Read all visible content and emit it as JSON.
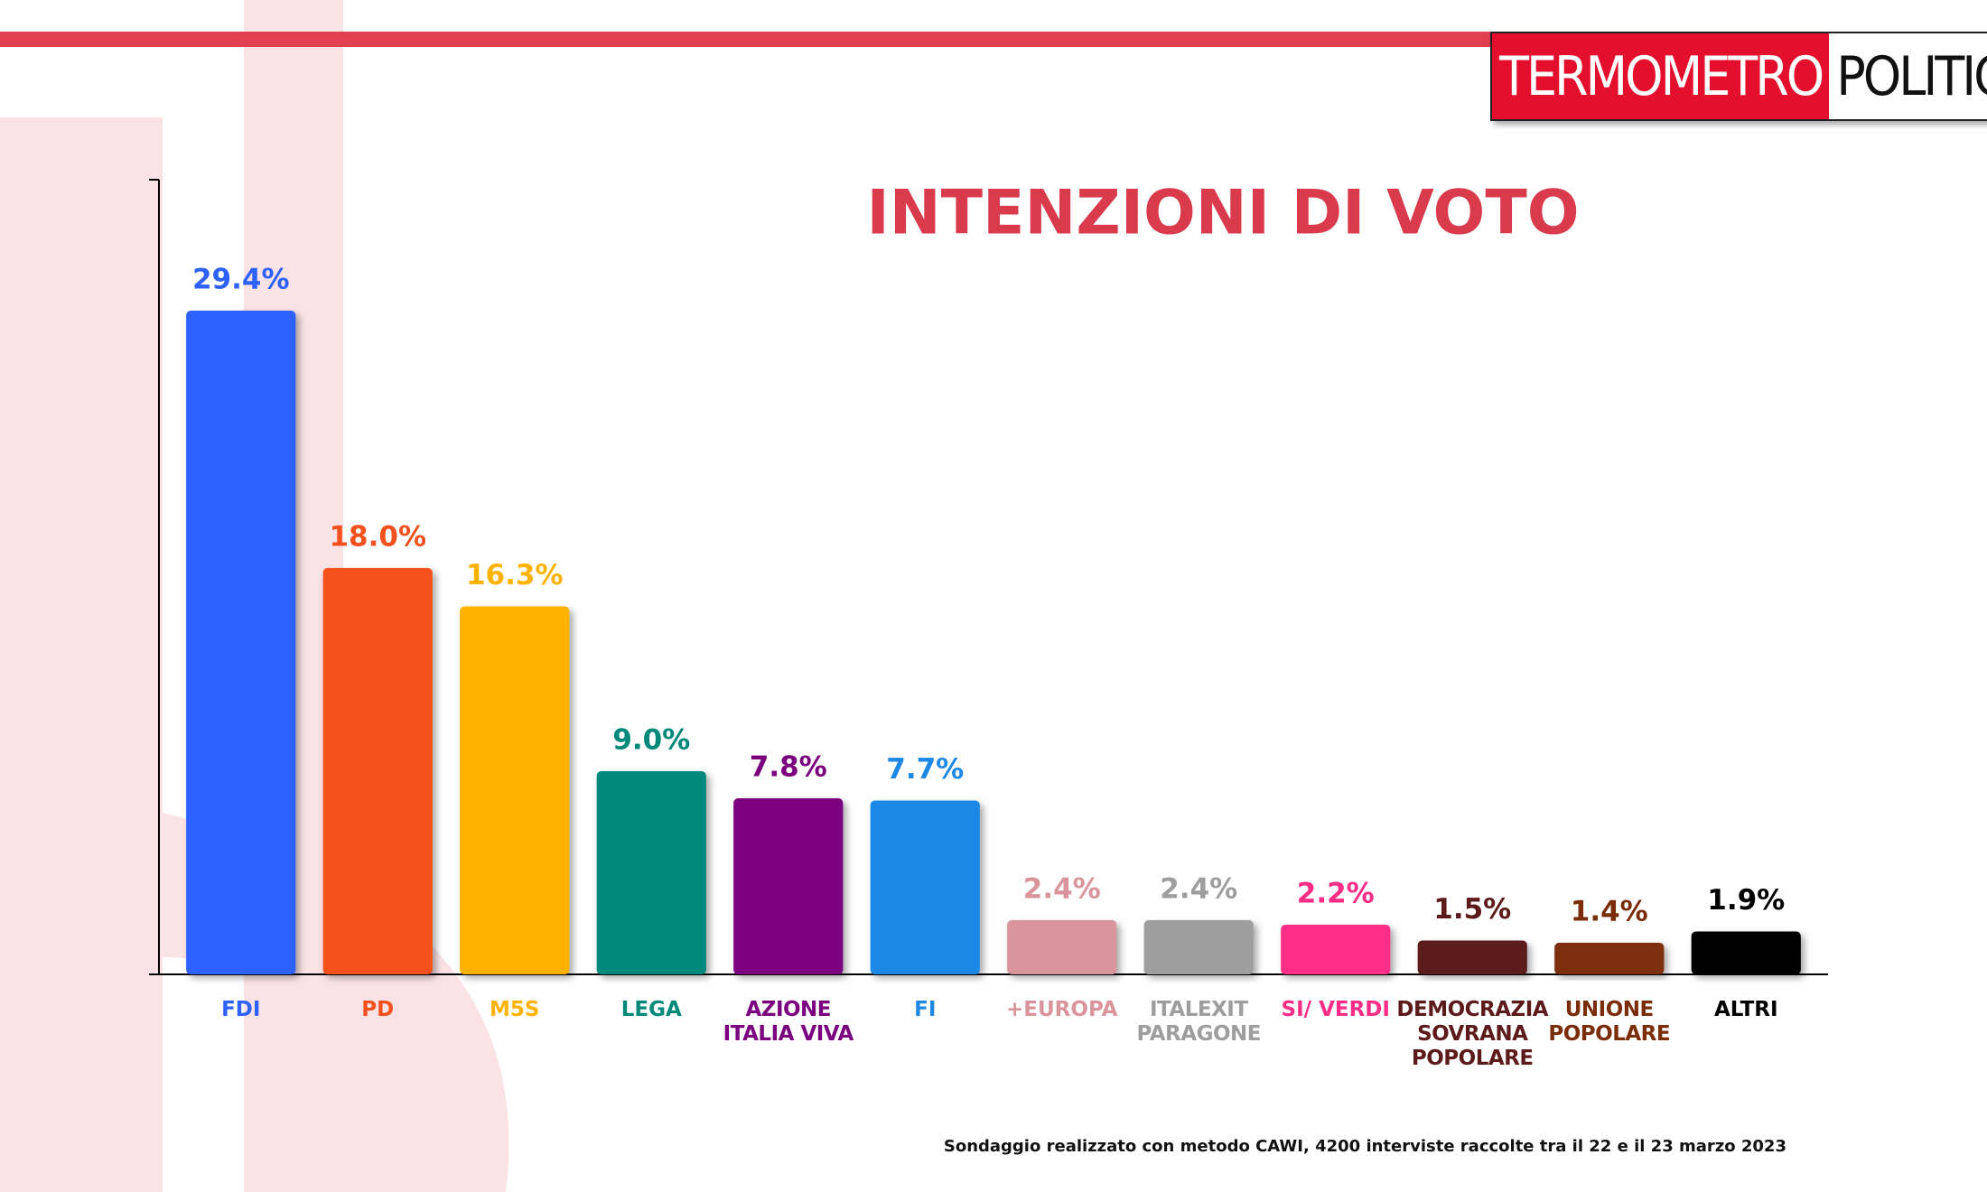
{
  "logo": {
    "left": "TERMOMETRO",
    "right": "POLITICO"
  },
  "chart_data": {
    "type": "bar",
    "title": "INTENZIONI DI VOTO",
    "categories": [
      "FDI",
      "PD",
      "M5S",
      "LEGA",
      "AZIONE ITALIA VIVA",
      "FI",
      "+EUROPA",
      "ITALEXIT PARAGONE",
      "SI/ VERDI",
      "DEMOCRAZIA SOVRANA POPOLARE",
      "UNIONE POPOLARE",
      "ALTRI"
    ],
    "values": [
      29.4,
      18.0,
      16.3,
      9.0,
      7.8,
      7.7,
      2.4,
      2.4,
      2.2,
      1.5,
      1.4,
      1.9
    ],
    "value_labels": [
      "29.4%",
      "18.0%",
      "16.3%",
      "9.0%",
      "7.8%",
      "7.7%",
      "2.4%",
      "2.4%",
      "2.2%",
      "1.5%",
      "1.4%",
      "1.9%"
    ],
    "colors": [
      "#2e62ff",
      "#f4511e",
      "#ffb300",
      "#00897b",
      "#7b0080",
      "#1e88e5",
      "#d9959b",
      "#9e9e9e",
      "#ff2d86",
      "#5d1a1a",
      "#7b2d0a",
      "#000000"
    ],
    "ylim": [
      0,
      35.2
    ],
    "caption": "Sondaggio realizzato con metodo CAWI, 4200 interviste raccolte tra il 22 e il 23 marzo 2023"
  }
}
